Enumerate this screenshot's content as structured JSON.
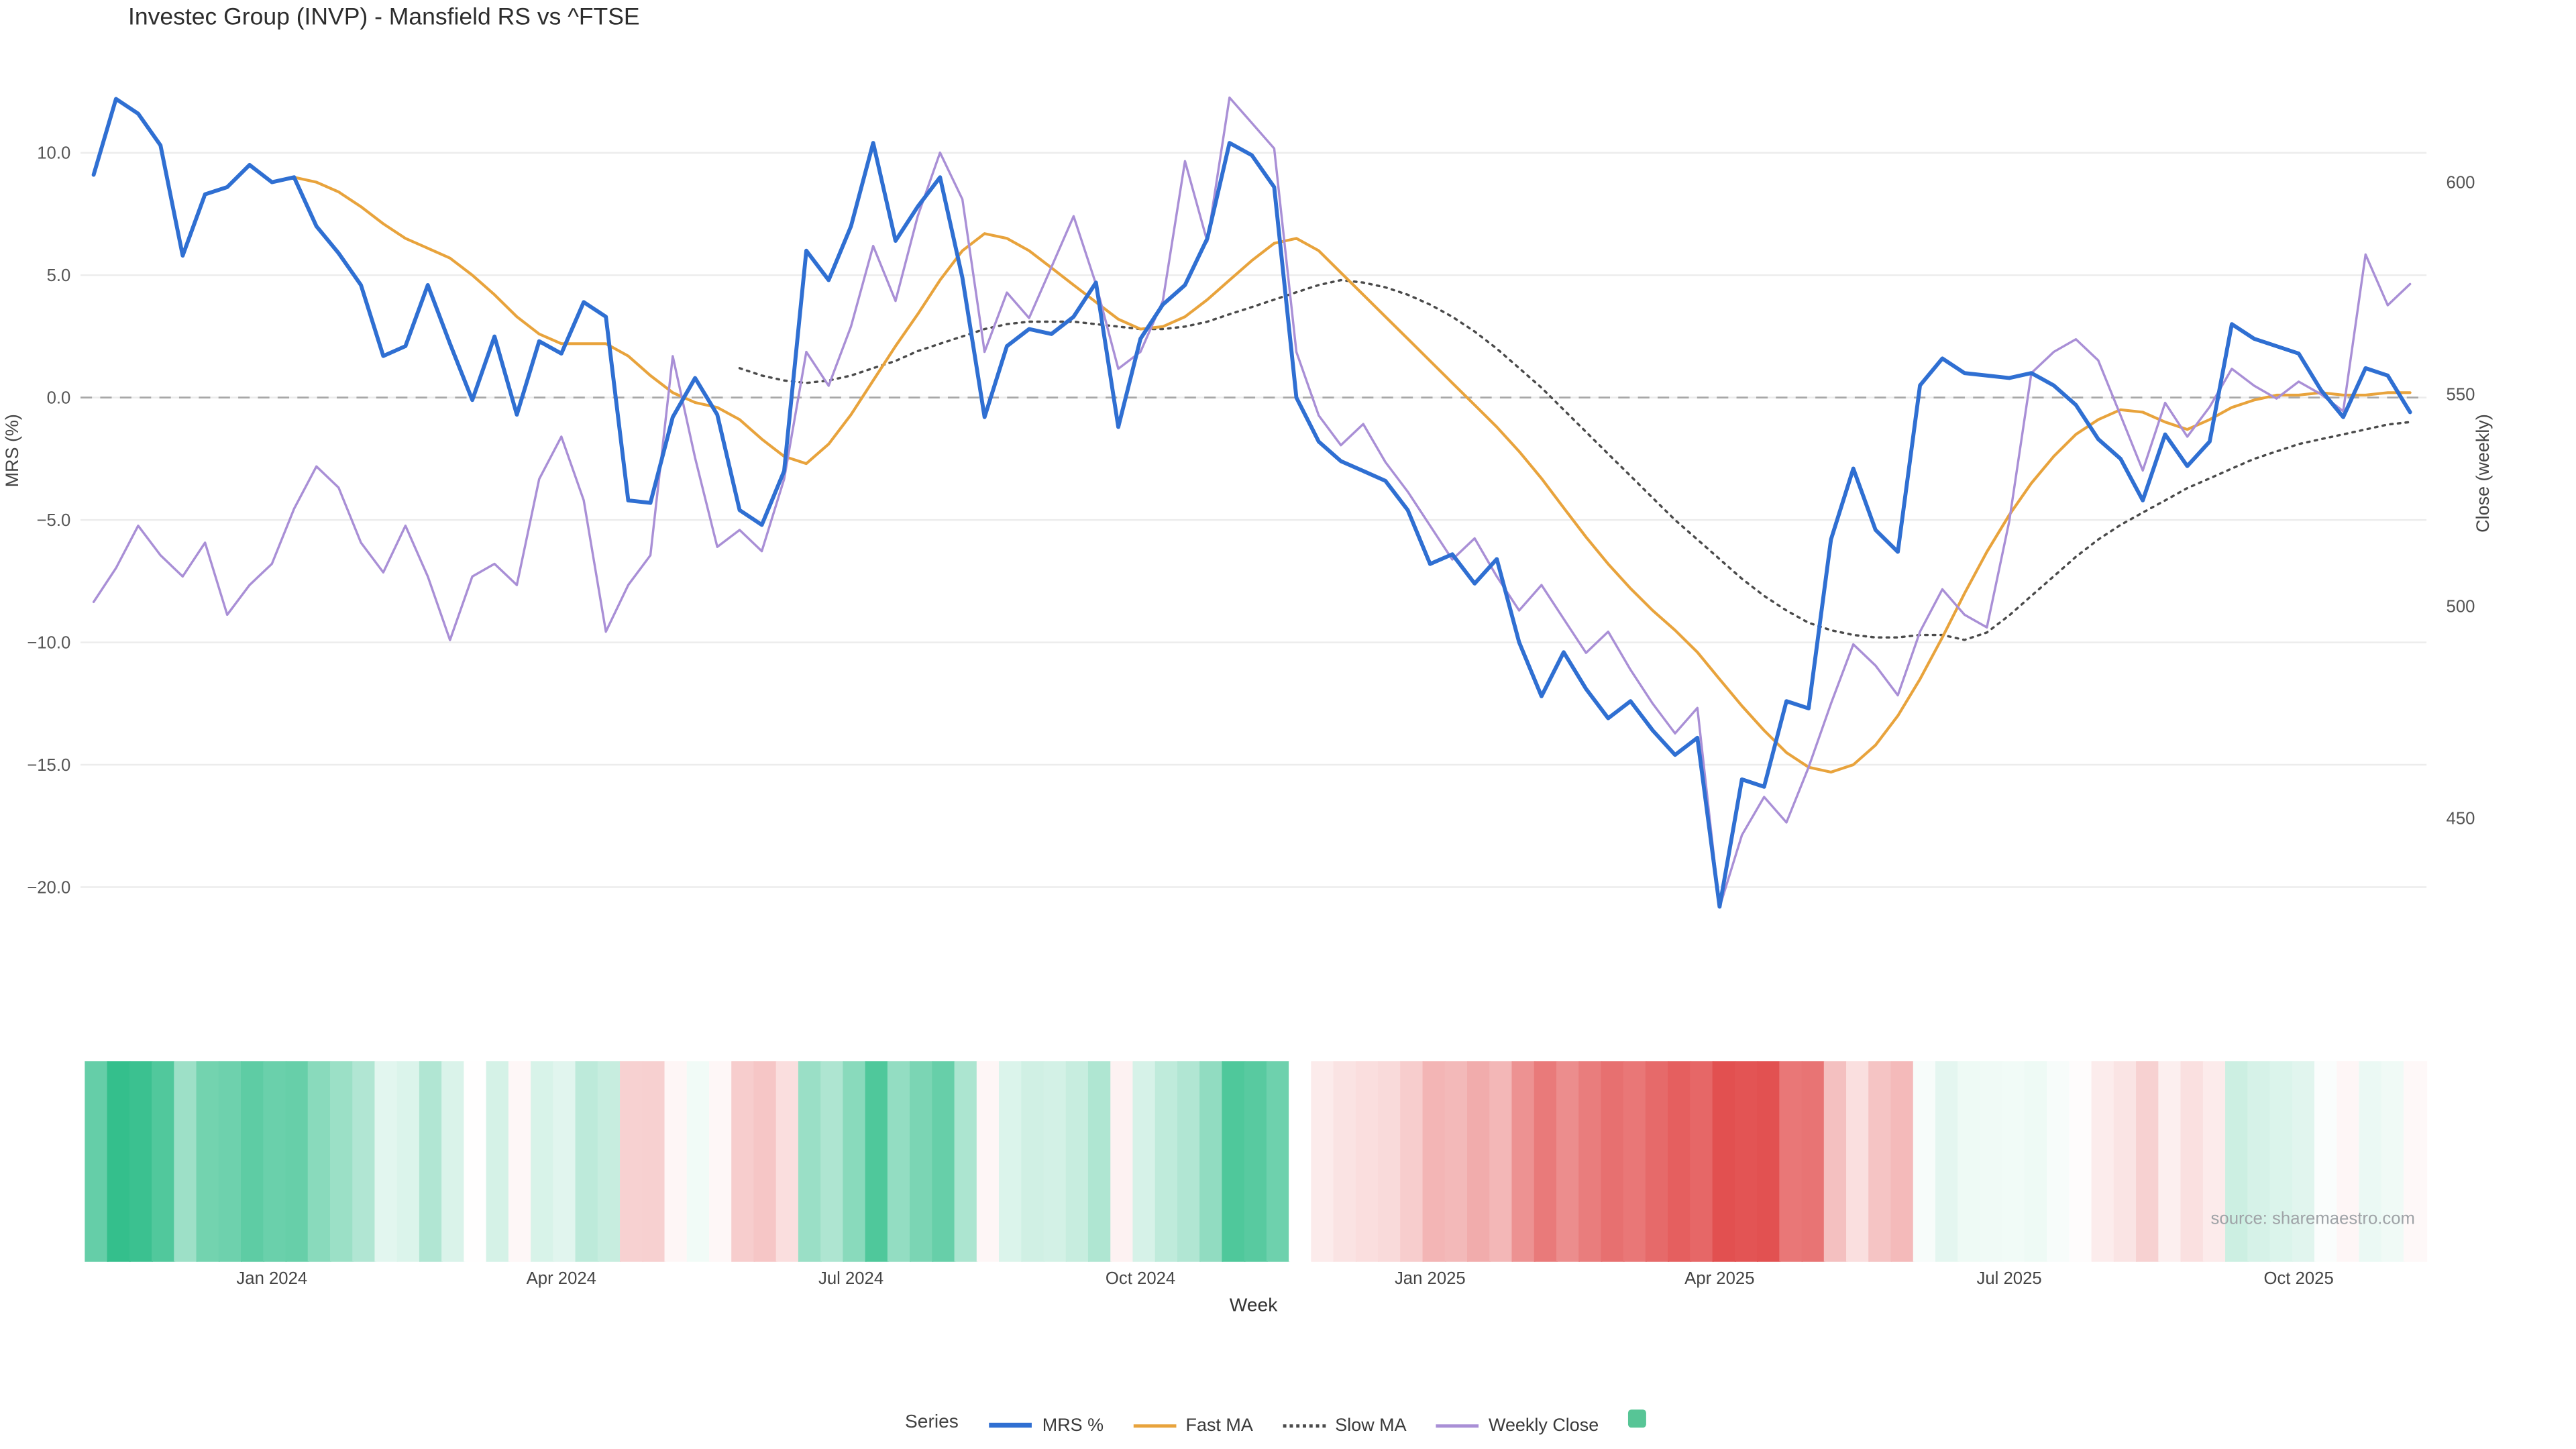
{
  "title": "Investec Group (INVP) - Mansfield RS vs ^FTSE",
  "source": "source: sharemaestro.com",
  "axes": {
    "left_label": "MRS (%)",
    "right_label": "Close (weekly)",
    "x_label": "Week",
    "left_ticks": [
      {
        "label": "10.0",
        "value": 10
      },
      {
        "label": "5.0",
        "value": 5
      },
      {
        "label": "0.0",
        "value": 0
      },
      {
        "label": "−5.0",
        "value": -5
      },
      {
        "label": "−10.0",
        "value": -10
      },
      {
        "label": "−15.0",
        "value": -15
      },
      {
        "label": "−20.0",
        "value": -20
      }
    ],
    "right_ticks": [
      {
        "label": "600",
        "value": 600
      },
      {
        "label": "550",
        "value": 550
      },
      {
        "label": "500",
        "value": 500
      },
      {
        "label": "450",
        "value": 450
      }
    ],
    "x_ticks": [
      {
        "label": "Jan 2024",
        "week": 8
      },
      {
        "label": "Apr 2024",
        "week": 21
      },
      {
        "label": "Jul 2024",
        "week": 34
      },
      {
        "label": "Oct 2024",
        "week": 47
      },
      {
        "label": "Jan 2025",
        "week": 60
      },
      {
        "label": "Apr 2025",
        "week": 73
      },
      {
        "label": "Jul 2025",
        "week": 86
      },
      {
        "label": "Oct 2025",
        "week": 99
      }
    ]
  },
  "legend": {
    "title": "Series",
    "items": [
      {
        "label": "MRS %",
        "swatch": "line",
        "color": "#2f6fd2",
        "weight": 3,
        "dash": "solid"
      },
      {
        "label": "Fast MA",
        "swatch": "line",
        "color": "#e8a33c",
        "weight": 2,
        "dash": "solid"
      },
      {
        "label": "Slow MA",
        "swatch": "line",
        "color": "#4a4a4a",
        "weight": 2,
        "dash": "dotted"
      },
      {
        "label": "Weekly Close",
        "swatch": "line",
        "color": "#a98fd6",
        "weight": 2,
        "dash": "solid"
      },
      {
        "label": "",
        "swatch": "square",
        "color": "#57c596"
      }
    ]
  },
  "chart_data": {
    "type": "line",
    "x_unit": "weekly",
    "x_range": "Nov 2023 - Nov 2025",
    "zero_baseline_dashed": true,
    "grid": "horizontal-left-ticks",
    "ylim_left": [
      -23.7,
      14.2
    ],
    "ylim_right": [
      412,
      631
    ],
    "heatmap": {
      "based_on": "MRS %",
      "positive_color": "#34bf8c",
      "negative_color": "#e25050",
      "neutral_color": "#ffffff"
    },
    "series": [
      {
        "name": "MRS %",
        "axis": "left",
        "color": "#2f6fd2",
        "width": 2.4,
        "dash": "",
        "values": [
          9.1,
          12.2,
          11.6,
          10.3,
          5.8,
          8.3,
          8.6,
          9.5,
          8.8,
          9.0,
          7.0,
          5.9,
          4.6,
          1.7,
          2.1,
          4.6,
          2.2,
          -0.1,
          2.5,
          -0.7,
          2.3,
          1.8,
          3.9,
          3.3,
          -4.2,
          -4.3,
          -0.8,
          0.8,
          -0.7,
          -4.6,
          -5.2,
          -3.0,
          6.0,
          4.8,
          7.0,
          10.4,
          6.4,
          7.8,
          9.0,
          4.9,
          -0.8,
          2.1,
          2.8,
          2.6,
          3.3,
          4.7,
          -1.2,
          2.4,
          3.8,
          4.6,
          6.5,
          10.4,
          9.9,
          8.6,
          0.0,
          -1.8,
          -2.6,
          -3.0,
          -3.4,
          -4.6,
          -6.8,
          -6.4,
          -7.6,
          -6.6,
          -10.0,
          -12.2,
          -10.4,
          -11.9,
          -13.1,
          -12.4,
          -13.6,
          -14.6,
          -13.9,
          -20.8,
          -15.6,
          -15.9,
          -12.4,
          -12.7,
          -5.8,
          -2.9,
          -5.4,
          -6.3,
          0.5,
          1.6,
          1.0,
          0.9,
          0.8,
          1.0,
          0.5,
          -0.3,
          -1.7,
          -2.5,
          -4.2,
          -1.5,
          -2.8,
          -1.8,
          3.0,
          2.4,
          2.1,
          1.8,
          0.3,
          -0.8,
          1.2,
          0.9,
          -0.6
        ]
      },
      {
        "name": "Fast MA",
        "axis": "left",
        "color": "#e8a33c",
        "width": 1.7,
        "dash": "",
        "values": [
          null,
          null,
          null,
          null,
          null,
          null,
          null,
          null,
          null,
          9.0,
          8.8,
          8.4,
          7.8,
          7.1,
          6.5,
          6.1,
          5.7,
          5.0,
          4.2,
          3.3,
          2.6,
          2.2,
          2.2,
          2.2,
          1.7,
          0.9,
          0.2,
          -0.2,
          -0.4,
          -0.9,
          -1.7,
          -2.4,
          -2.7,
          -1.9,
          -0.7,
          0.7,
          2.1,
          3.4,
          4.8,
          6.0,
          6.7,
          6.5,
          6.0,
          5.3,
          4.6,
          3.9,
          3.2,
          2.8,
          2.9,
          3.3,
          4.0,
          4.8,
          5.6,
          6.3,
          6.5,
          6.0,
          5.1,
          4.2,
          3.3,
          2.4,
          1.5,
          0.6,
          -0.3,
          -1.2,
          -2.2,
          -3.3,
          -4.5,
          -5.7,
          -6.8,
          -7.8,
          -8.7,
          -9.5,
          -10.4,
          -11.5,
          -12.6,
          -13.6,
          -14.5,
          -15.1,
          -15.3,
          -15.0,
          -14.2,
          -13.0,
          -11.5,
          -9.8,
          -8.0,
          -6.3,
          -4.8,
          -3.5,
          -2.4,
          -1.5,
          -0.9,
          -0.5,
          -0.6,
          -1.0,
          -1.3,
          -0.9,
          -0.4,
          -0.1,
          0.1,
          0.1,
          0.2,
          0.1,
          0.1,
          0.2,
          0.2
        ]
      },
      {
        "name": "Slow MA",
        "axis": "left",
        "color": "#4a4a4a",
        "width": 1.4,
        "dash": "1.5 3.2",
        "values": [
          null,
          null,
          null,
          null,
          null,
          null,
          null,
          null,
          null,
          null,
          null,
          null,
          null,
          null,
          null,
          null,
          null,
          null,
          null,
          null,
          null,
          null,
          null,
          null,
          null,
          null,
          null,
          null,
          null,
          1.2,
          0.9,
          0.7,
          0.6,
          0.7,
          0.9,
          1.2,
          1.5,
          1.9,
          2.2,
          2.5,
          2.8,
          3.0,
          3.1,
          3.1,
          3.1,
          3.0,
          2.9,
          2.8,
          2.8,
          2.9,
          3.1,
          3.4,
          3.7,
          4.0,
          4.3,
          4.6,
          4.8,
          4.7,
          4.5,
          4.2,
          3.8,
          3.3,
          2.7,
          2.0,
          1.2,
          0.4,
          -0.5,
          -1.4,
          -2.3,
          -3.2,
          -4.1,
          -5.0,
          -5.8,
          -6.6,
          -7.4,
          -8.1,
          -8.7,
          -9.2,
          -9.5,
          -9.7,
          -9.8,
          -9.8,
          -9.7,
          -9.7,
          -9.9,
          -9.6,
          -8.9,
          -8.1,
          -7.3,
          -6.5,
          -5.8,
          -5.2,
          -4.7,
          -4.2,
          -3.7,
          -3.3,
          -2.9,
          -2.5,
          -2.2,
          -1.9,
          -1.7,
          -1.5,
          -1.3,
          -1.1,
          -1.0
        ]
      },
      {
        "name": "Weekly Close",
        "axis": "right",
        "color": "#a98fd6",
        "width": 1.4,
        "dash": "",
        "values": [
          501,
          509,
          519,
          512,
          507,
          515,
          498,
          505,
          510,
          523,
          533,
          528,
          515,
          508,
          519,
          507,
          492,
          507,
          510,
          505,
          530,
          540,
          525,
          494,
          505,
          512,
          559,
          535,
          514,
          518,
          513,
          530,
          560,
          552,
          566,
          585,
          572,
          592,
          607,
          596,
          560,
          574,
          568,
          580,
          592,
          576,
          556,
          560,
          572,
          605,
          586,
          620,
          614,
          608,
          560,
          545,
          538,
          543,
          534,
          527,
          519,
          511,
          516,
          507,
          499,
          505,
          497,
          489,
          494,
          485,
          477,
          470,
          476,
          429,
          446,
          455,
          449,
          462,
          477,
          491,
          486,
          479,
          494,
          504,
          498,
          495,
          520,
          555,
          560,
          563,
          558,
          545,
          532,
          548,
          540,
          547,
          556,
          552,
          549,
          553,
          550,
          546,
          583,
          571,
          576
        ]
      }
    ]
  }
}
